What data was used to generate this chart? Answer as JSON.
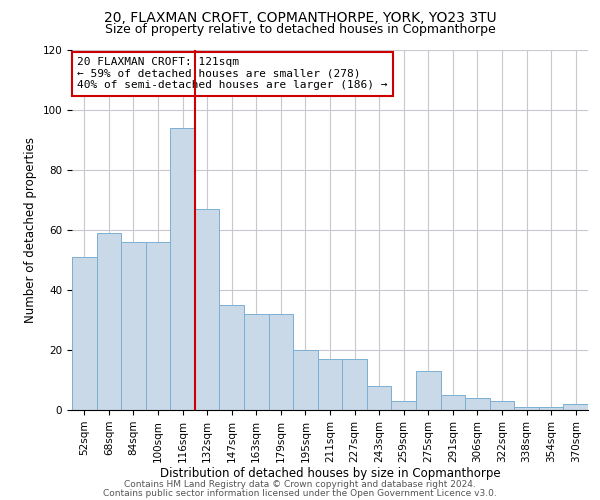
{
  "title1": "20, FLAXMAN CROFT, COPMANTHORPE, YORK, YO23 3TU",
  "title2": "Size of property relative to detached houses in Copmanthorpe",
  "xlabel": "Distribution of detached houses by size in Copmanthorpe",
  "ylabel": "Number of detached properties",
  "footnote1": "Contains HM Land Registry data © Crown copyright and database right 2024.",
  "footnote2": "Contains public sector information licensed under the Open Government Licence v3.0.",
  "bar_color": "#c9d9e8",
  "bar_edge_color": "#7bafd4",
  "grid_color": "#c8c8d0",
  "vline_color": "#cc0000",
  "annotation_box_color": "#cc0000",
  "annotation_line1": "20 FLAXMAN CROFT: 121sqm",
  "annotation_line2": "← 59% of detached houses are smaller (278)",
  "annotation_line3": "40% of semi-detached houses are larger (186) →",
  "categories": [
    "52sqm",
    "68sqm",
    "84sqm",
    "100sqm",
    "116sqm",
    "132sqm",
    "147sqm",
    "163sqm",
    "179sqm",
    "195sqm",
    "211sqm",
    "227sqm",
    "243sqm",
    "259sqm",
    "275sqm",
    "291sqm",
    "306sqm",
    "322sqm",
    "338sqm",
    "354sqm",
    "370sqm"
  ],
  "values": [
    51,
    59,
    56,
    56,
    94,
    67,
    35,
    32,
    32,
    20,
    17,
    17,
    8,
    3,
    13,
    5,
    4,
    3,
    1,
    1,
    2
  ],
  "ylim": [
    0,
    120
  ],
  "yticks": [
    0,
    20,
    40,
    60,
    80,
    100,
    120
  ],
  "vline_x_index": 4,
  "title_fontsize": 10,
  "subtitle_fontsize": 9,
  "tick_fontsize": 7.5,
  "axis_label_fontsize": 8.5,
  "annotation_fontsize": 8,
  "footnote_fontsize": 6.5,
  "footnote_color": "#555555"
}
